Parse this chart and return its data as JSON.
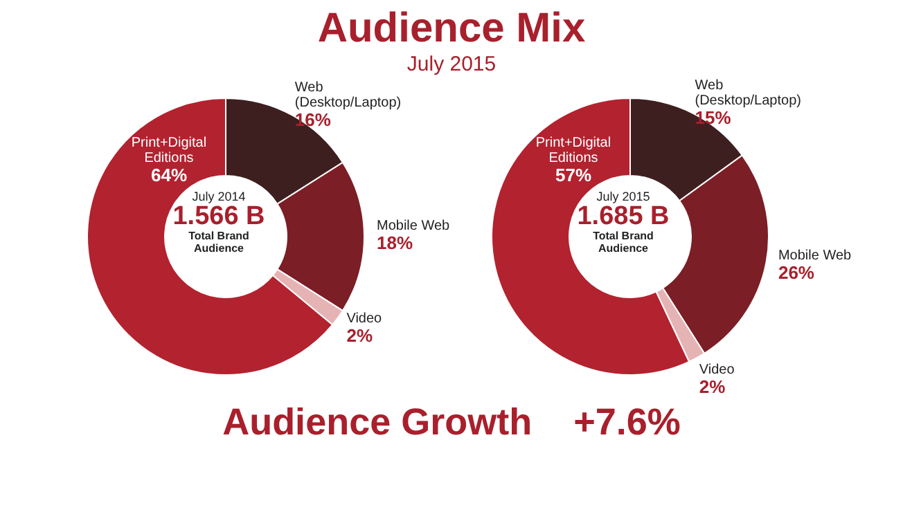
{
  "chart_data": [
    {
      "type": "donut",
      "title": "Audience Mix",
      "subtitle": "July 2015",
      "categories": [
        "Web (Desktop/Laptop)",
        "Mobile Web",
        "Video",
        "Print+Digital Editions"
      ],
      "values": [
        16,
        18,
        2,
        64
      ],
      "value_labels": [
        "16%",
        "18%",
        "2%",
        "64%"
      ],
      "colors": [
        "#3e1f1f",
        "#7b1e26",
        "#e6b3b5",
        "#b3222f"
      ],
      "legend": false,
      "annotations": [
        "July 2014",
        "1.566 B",
        "Total Brand Audience",
        "Audience Growth    +7.6%"
      ]
    },
    {
      "type": "donut",
      "categories": [
        "Web (Desktop/Laptop)",
        "Mobile Web",
        "Video",
        "Print+Digital Editions"
      ],
      "values": [
        15,
        26,
        2,
        57
      ],
      "value_labels": [
        "15%",
        "26%",
        "2%",
        "57%"
      ],
      "colors": [
        "#3e1f1f",
        "#7b1e26",
        "#e6b3b5",
        "#b3222f"
      ],
      "legend": false,
      "annotations": [
        "July 2015",
        "1.685 B",
        "Total Brand Audience"
      ]
    }
  ]
}
